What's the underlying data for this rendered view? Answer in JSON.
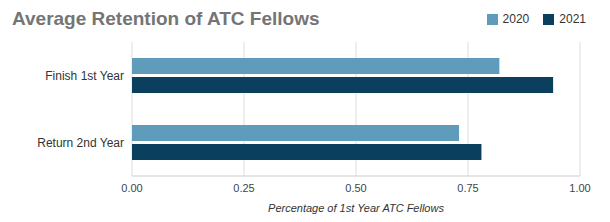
{
  "chart_data": {
    "type": "bar",
    "title": "Average Retention of ATC Fellows",
    "orientation": "horizontal",
    "categories": [
      "Finish 1st Year",
      "Return 2nd Year"
    ],
    "series": [
      {
        "name": "2020",
        "color": "#5f9bba",
        "values": [
          0.82,
          0.73
        ]
      },
      {
        "name": "2021",
        "color": "#0b3f5e",
        "values": [
          0.94,
          0.78
        ]
      }
    ],
    "x_label": "Percentage of 1st Year ATC Fellows",
    "xlim": [
      0,
      1
    ],
    "xticks": [
      {
        "value": 0,
        "label": "0.00"
      },
      {
        "value": 0.25,
        "label": "0.25"
      },
      {
        "value": 0.5,
        "label": "0.50"
      },
      {
        "value": 0.75,
        "label": "0.75"
      },
      {
        "value": 1,
        "label": "1.00"
      }
    ],
    "grid": true,
    "legend": "top-right"
  }
}
